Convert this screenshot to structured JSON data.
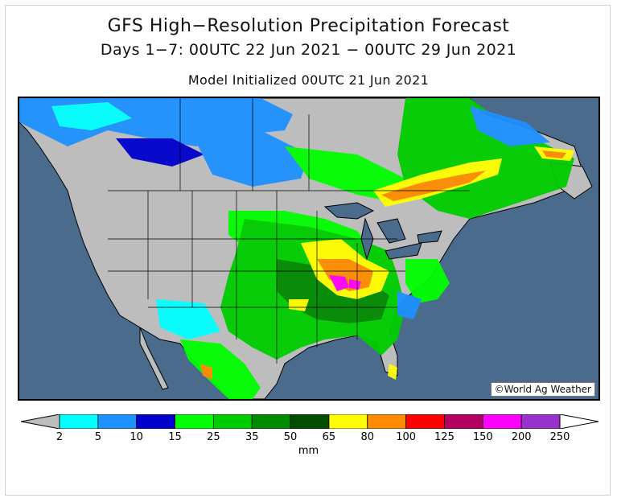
{
  "title": "GFS High−Resolution Precipitation Forecast",
  "subtitle": "Days 1−7: 00UTC 22 Jun 2021 − 00UTC 29 Jun 2021",
  "init_line": "Model Initialized 00UTC 21 Jun 2021",
  "credit": "©World Ag Weather",
  "colors": {
    "ocean": "#4a6b8c",
    "dry_land": "#bdbdbd",
    "border": "#000000"
  },
  "legend": {
    "units": "mm",
    "tick_labels": [
      "2",
      "5",
      "10",
      "15",
      "25",
      "35",
      "50",
      "65",
      "80",
      "100",
      "125",
      "150",
      "200",
      "250"
    ],
    "colors": [
      "#00ffff",
      "#1e90ff",
      "#0000cd",
      "#00ff00",
      "#00cd00",
      "#008b00",
      "#004d00",
      "#ffff00",
      "#ff8c00",
      "#ff0000",
      "#b40060",
      "#ff00ff",
      "#9932cc"
    ],
    "under_color": "#bdbdbd",
    "over_color": "#ffffff"
  }
}
